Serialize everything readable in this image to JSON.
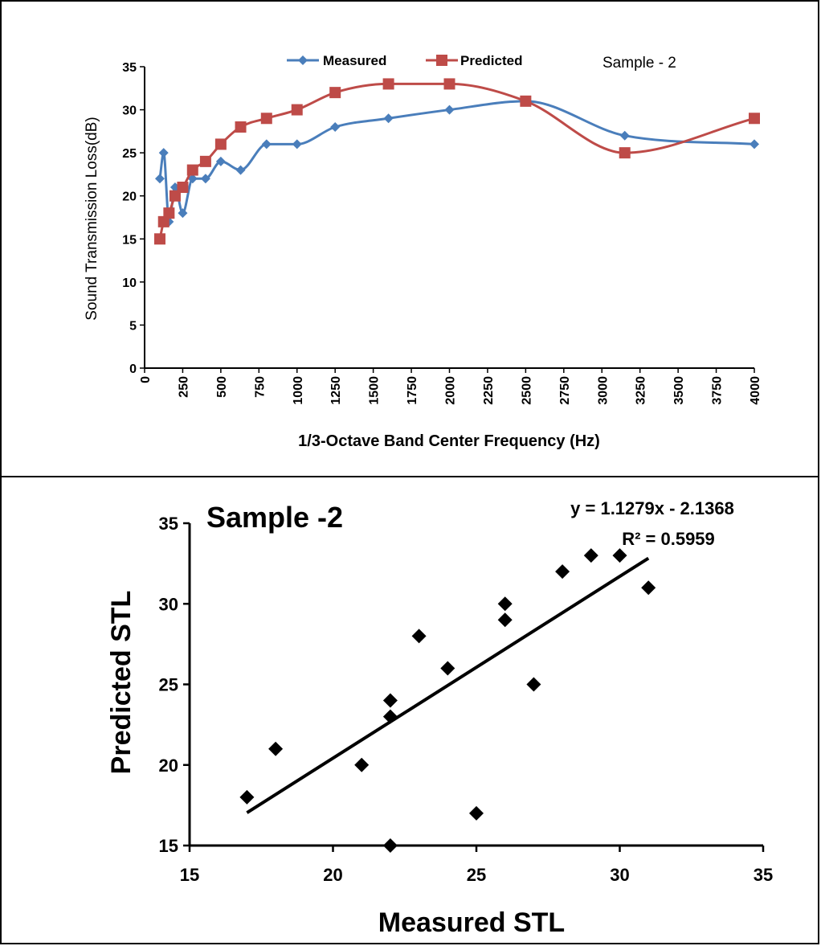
{
  "chart_data": [
    {
      "type": "line",
      "title": "Sample - 2",
      "xlabel": "1/3-Octave Band Center Frequency (Hz)",
      "ylabel": "Sound Transmission Loss(dB)",
      "xlim": [
        0,
        4000
      ],
      "ylim": [
        0,
        35
      ],
      "xticks": [
        "0",
        "250",
        "500",
        "750",
        "1000",
        "1250",
        "1500",
        "1750",
        "2000",
        "2250",
        "2500",
        "2750",
        "3000",
        "3250",
        "3500",
        "3750",
        "4000"
      ],
      "yticks": [
        "0",
        "5",
        "10",
        "15",
        "20",
        "25",
        "30",
        "35"
      ],
      "legend_position": "top",
      "grid": false,
      "series": [
        {
          "name": "Measured",
          "color": "#4a7ebb",
          "marker": "diamond",
          "x": [
            100,
            125,
            160,
            200,
            250,
            315,
            400,
            500,
            630,
            800,
            1000,
            1250,
            1600,
            2000,
            2500,
            3150,
            4000
          ],
          "y": [
            22,
            25,
            17,
            21,
            18,
            22,
            22,
            24,
            23,
            26,
            26,
            28,
            29,
            30,
            31,
            27,
            26
          ]
        },
        {
          "name": "Predicted",
          "color": "#be4b48",
          "marker": "square",
          "x": [
            100,
            125,
            160,
            200,
            250,
            315,
            400,
            500,
            630,
            800,
            1000,
            1250,
            1600,
            2000,
            2500,
            3150,
            4000
          ],
          "y": [
            15,
            17,
            18,
            20,
            21,
            23,
            24,
            26,
            28,
            29,
            30,
            32,
            33,
            33,
            31,
            25,
            29
          ]
        }
      ]
    },
    {
      "type": "scatter",
      "title": "Sample -2",
      "xlabel": "Measured  STL",
      "ylabel": "Predicted  STL",
      "xlim": [
        15,
        35
      ],
      "ylim": [
        15,
        35
      ],
      "xticks": [
        "15",
        "20",
        "25",
        "30",
        "35"
      ],
      "yticks": [
        "15",
        "20",
        "25",
        "30",
        "35"
      ],
      "grid": false,
      "marker": "diamond",
      "points": [
        [
          17,
          18
        ],
        [
          18,
          21
        ],
        [
          21,
          20
        ],
        [
          22,
          15
        ],
        [
          22,
          23
        ],
        [
          22,
          24
        ],
        [
          23,
          28
        ],
        [
          24,
          26
        ],
        [
          25,
          17
        ],
        [
          26,
          29
        ],
        [
          26,
          30
        ],
        [
          27,
          25
        ],
        [
          28,
          32
        ],
        [
          29,
          33
        ],
        [
          30,
          33
        ],
        [
          31,
          31
        ]
      ],
      "trendline": {
        "slope": 1.1279,
        "intercept": -2.1368,
        "x_range": [
          17,
          31
        ],
        "equation": "y = 1.1279x - 2.1368",
        "r2_text": "R² = 0.5959"
      }
    }
  ]
}
